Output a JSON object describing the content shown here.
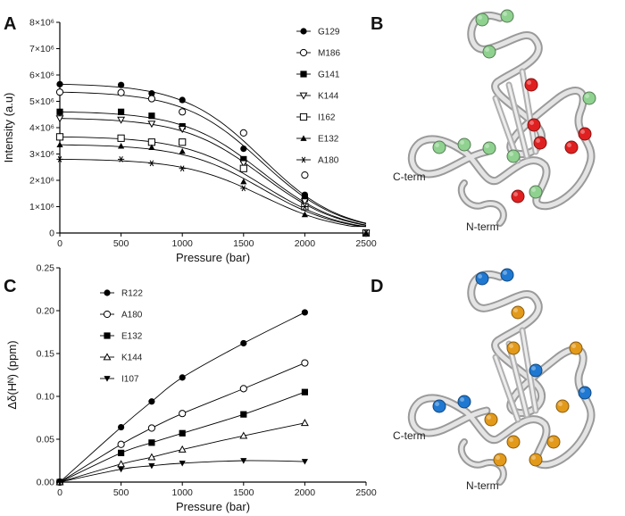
{
  "panels": {
    "A": "A",
    "B": "B",
    "C": "C",
    "D": "D"
  },
  "structures": {
    "B": {
      "cterm": "C-term",
      "nterm": "N-term",
      "sphere_colors": [
        "#8fd18f",
        "#e02020"
      ]
    },
    "D": {
      "cterm": "C-term",
      "nterm": "N-term",
      "sphere_colors": [
        "#1f78d1",
        "#e39a1a"
      ]
    }
  },
  "chart_data": [
    {
      "type": "scatter",
      "panel": "A",
      "xlabel": "Pressure (bar)",
      "ylabel": "Intensity (a.u)",
      "xlim": [
        0,
        2500
      ],
      "ylim": [
        0,
        8000000
      ],
      "xticks": [
        0,
        500,
        1000,
        1500,
        2000,
        2500
      ],
      "yticks": [
        0,
        1000000,
        2000000,
        3000000,
        4000000,
        5000000,
        6000000,
        7000000,
        8000000
      ],
      "ytick_labels": [
        "0",
        "1×10⁶",
        "2×10⁶",
        "3×10⁶",
        "4×10⁶",
        "5×10⁶",
        "6×10⁶",
        "7×10⁶",
        "8×10⁶"
      ],
      "legend_position": "top-right",
      "x": [
        0,
        500,
        750,
        1000,
        1500,
        2000,
        2500
      ],
      "series": [
        {
          "name": "G129",
          "marker": "filled-circle",
          "values": [
            5650000,
            5620000,
            5300000,
            5050000,
            3200000,
            1450000,
            0
          ]
        },
        {
          "name": "M186",
          "marker": "open-circle",
          "values": [
            5350000,
            5330000,
            5100000,
            4600000,
            3800000,
            2200000,
            0
          ]
        },
        {
          "name": "G141",
          "marker": "filled-square",
          "values": [
            4600000,
            4600000,
            4450000,
            4050000,
            2800000,
            1300000,
            0
          ]
        },
        {
          "name": "K144",
          "marker": "open-triangle-down",
          "values": [
            4350000,
            4300000,
            4150000,
            3950000,
            2650000,
            1200000,
            0
          ]
        },
        {
          "name": "I162",
          "marker": "open-square",
          "values": [
            3650000,
            3600000,
            3450000,
            3450000,
            2450000,
            1000000,
            0
          ]
        },
        {
          "name": "E132",
          "marker": "filled-triangle",
          "values": [
            3350000,
            3300000,
            3250000,
            3100000,
            1950000,
            700000,
            0
          ]
        },
        {
          "name": "A180",
          "marker": "asterisk",
          "values": [
            2800000,
            2800000,
            2650000,
            2450000,
            1700000,
            1000000,
            0
          ]
        }
      ]
    },
    {
      "type": "scatter",
      "panel": "C",
      "xlabel": "Pressure (bar)",
      "ylabel": "Δδ(Hᴺ) (ppm)",
      "xlim": [
        0,
        2500
      ],
      "ylim": [
        0,
        0.25
      ],
      "xticks": [
        0,
        500,
        1000,
        1500,
        2000,
        2500
      ],
      "yticks": [
        0,
        0.05,
        0.1,
        0.15,
        0.2,
        0.25
      ],
      "ytick_labels": [
        "0.00",
        "0.05",
        "0.10",
        "0.15",
        "0.20",
        "0.25"
      ],
      "legend_position": "top-left",
      "x": [
        0,
        500,
        750,
        1000,
        1500,
        2000
      ],
      "series": [
        {
          "name": "R122",
          "marker": "filled-circle",
          "values": [
            0,
            0.064,
            0.094,
            0.122,
            0.162,
            0.198
          ]
        },
        {
          "name": "A180",
          "marker": "open-circle",
          "values": [
            0,
            0.044,
            0.063,
            0.08,
            0.109,
            0.139
          ]
        },
        {
          "name": "E132",
          "marker": "filled-square",
          "values": [
            0,
            0.034,
            0.046,
            0.057,
            0.079,
            0.105
          ]
        },
        {
          "name": "K144",
          "marker": "open-triangle",
          "values": [
            0,
            0.021,
            0.029,
            0.038,
            0.054,
            0.069
          ]
        },
        {
          "name": "I107",
          "marker": "filled-triangle-down",
          "values": [
            0,
            0.015,
            0.019,
            0.022,
            0.025,
            0.024
          ]
        }
      ]
    }
  ]
}
